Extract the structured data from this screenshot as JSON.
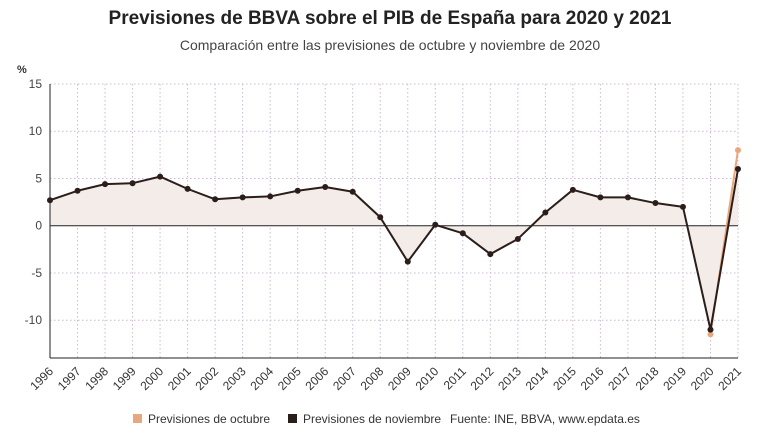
{
  "title": "Previsiones de BBVA sobre el PIB de España para 2020 y 2021",
  "subtitle": "Comparación entre las previsiones de octubre y noviembre de 2020",
  "chart_data": {
    "type": "line",
    "ylabel": "%",
    "ylim": [
      -14,
      15
    ],
    "yticks": [
      15,
      10,
      5,
      0,
      -5,
      -10
    ],
    "categories": [
      "1996",
      "1997",
      "1998",
      "1999",
      "2000",
      "2001",
      "2002",
      "2003",
      "2004",
      "2005",
      "2006",
      "2007",
      "2008",
      "2009",
      "2010",
      "2011",
      "2012",
      "2013",
      "2014",
      "2015",
      "2016",
      "2017",
      "2018",
      "2019",
      "2020",
      "2021"
    ],
    "series": [
      {
        "name": "Previsiones de octubre",
        "color": "#e8a77c",
        "values": [
          null,
          null,
          null,
          null,
          null,
          null,
          null,
          null,
          null,
          null,
          null,
          null,
          null,
          null,
          null,
          null,
          null,
          null,
          null,
          null,
          null,
          null,
          null,
          null,
          -11.5,
          8.0
        ]
      },
      {
        "name": "Previsiones de noviembre",
        "color": "#2b1d1a",
        "values": [
          2.7,
          3.7,
          4.4,
          4.5,
          5.2,
          3.9,
          2.8,
          3.0,
          3.1,
          3.7,
          4.1,
          3.6,
          0.9,
          -3.8,
          0.1,
          -0.8,
          -3.0,
          -1.4,
          1.4,
          3.8,
          3.0,
          3.0,
          2.4,
          2.0,
          -11.0,
          6.0
        ]
      }
    ]
  },
  "legend": [
    {
      "label": "Previsiones de octubre",
      "color": "#e8a77c"
    },
    {
      "label": "Previsiones de noviembre",
      "color": "#2b1d1a"
    }
  ],
  "source": "Fuente: INE, BBVA, www.epdata.es"
}
